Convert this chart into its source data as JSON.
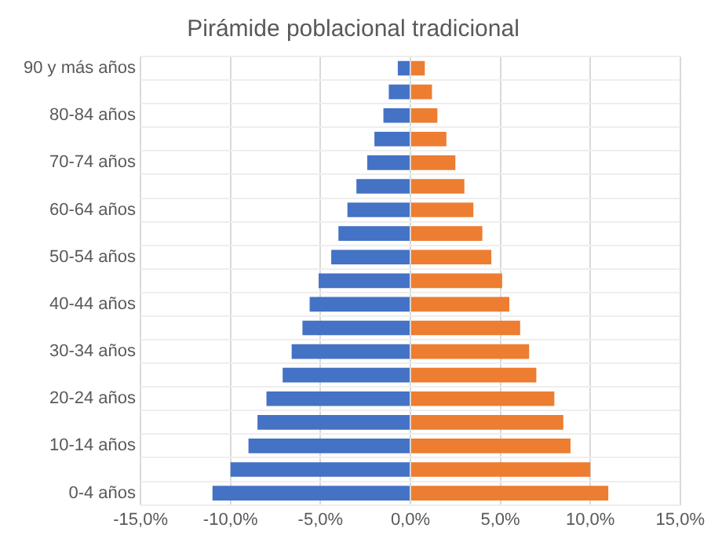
{
  "chart_data": {
    "type": "bar",
    "orientation": "horizontal",
    "stacked": true,
    "title": "Pirámide poblacional tradicional",
    "categories": [
      "90 y más años",
      null,
      "80-84 años",
      null,
      "70-74 años",
      null,
      "60-64 años",
      null,
      "50-54 años",
      null,
      "40-44 años",
      null,
      "30-34 años",
      null,
      "20-24 años",
      null,
      "10-14 años",
      null,
      "0-4 años"
    ],
    "series": [
      {
        "color": "#4472c4",
        "values": [
          -0.7,
          -1.2,
          -1.5,
          -2.0,
          -2.4,
          -3.0,
          -3.5,
          -4.0,
          -4.4,
          -5.1,
          -5.6,
          -6.0,
          -6.6,
          -7.1,
          -8.0,
          -8.5,
          -9.0,
          -10.0,
          -11.0
        ]
      },
      {
        "color": "#ed7d31",
        "values": [
          0.8,
          1.2,
          1.5,
          2.0,
          2.5,
          3.0,
          3.5,
          4.0,
          4.5,
          5.1,
          5.5,
          6.1,
          6.6,
          7.0,
          8.0,
          8.5,
          8.9,
          10.0,
          11.0
        ]
      }
    ],
    "xlim": [
      -15,
      15
    ],
    "xticks": [
      {
        "value": -15,
        "label": "-15,0%"
      },
      {
        "value": -10,
        "label": "-10,0%"
      },
      {
        "value": -5,
        "label": "-5,0%"
      },
      {
        "value": 0,
        "label": "0,0%"
      },
      {
        "value": 5,
        "label": "5,0%"
      },
      {
        "value": 10,
        "label": "10,0%"
      },
      {
        "value": 15,
        "label": "15,0%"
      }
    ],
    "grid": true,
    "legend": false
  }
}
